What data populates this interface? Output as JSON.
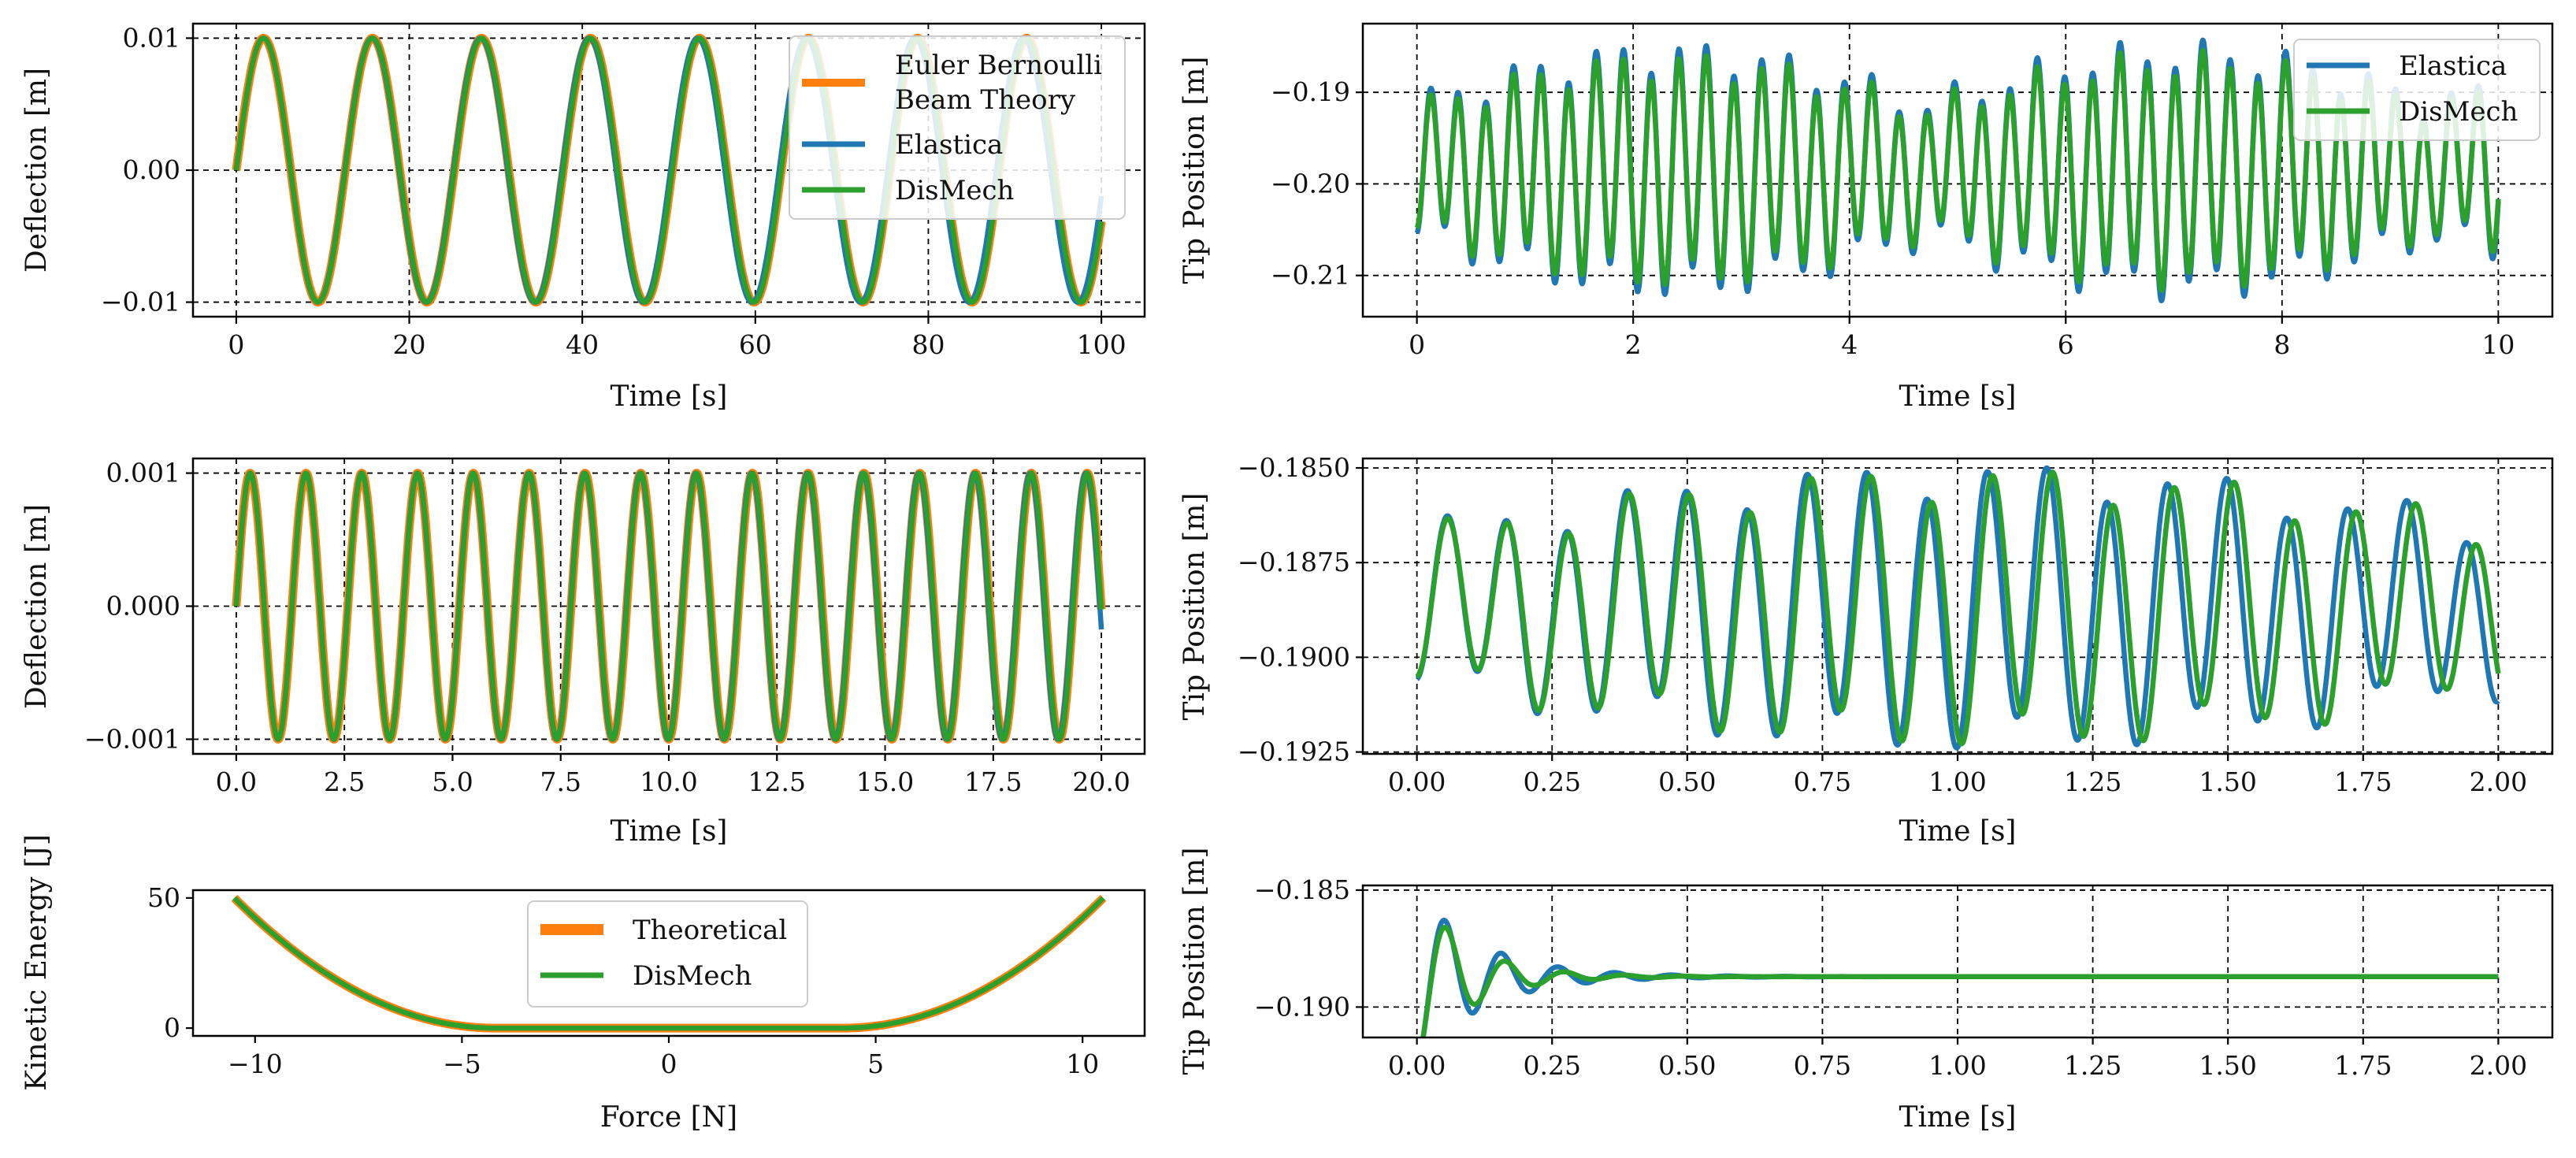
{
  "colors": {
    "theory": "#ff7f0e",
    "elastica": "#1f77b4",
    "dismech": "#2ca02c",
    "grid": "#000000",
    "frame": "#000000"
  },
  "chart_data": [
    {
      "id": "a",
      "type": "line",
      "xlabel": "Time [s]",
      "ylabel": "Deflection [m]",
      "xlim": [
        -5,
        105
      ],
      "ylim": [
        -0.0111,
        0.0111
      ],
      "xticks": [
        0,
        20,
        40,
        60,
        80,
        100
      ],
      "xticklabels": [
        "0",
        "20",
        "40",
        "60",
        "80",
        "100"
      ],
      "yticks": [
        -0.01,
        0,
        0.01
      ],
      "yticklabels": [
        "−0.01",
        "0.00",
        "0.01"
      ],
      "grid": true,
      "legend_position": "top-right",
      "series": [
        {
          "name": "Euler Bernoulli Beam Theory",
          "color_key": "theory",
          "model": "sine",
          "amp": 0.01,
          "period": 12.6,
          "x": [
            0,
            100
          ]
        },
        {
          "name": "Elastica",
          "color_key": "elastica",
          "model": "sine",
          "amp": 0.01,
          "period": 12.55,
          "x": [
            0,
            100
          ]
        },
        {
          "name": "DisMech",
          "color_key": "dismech",
          "model": "sine",
          "amp": 0.01,
          "period": 12.6,
          "x": [
            0,
            100
          ]
        }
      ]
    },
    {
      "id": "b",
      "type": "line",
      "xlabel": "Time [s]",
      "ylabel": "Tip Position [m]",
      "xlim": [
        -0.5,
        10.5
      ],
      "ylim": [
        -0.2145,
        -0.1825
      ],
      "xticks": [
        0,
        2,
        4,
        6,
        8,
        10
      ],
      "xticklabels": [
        "0",
        "2",
        "4",
        "6",
        "8",
        "10"
      ],
      "yticks": [
        -0.21,
        -0.2,
        -0.19
      ],
      "yticklabels": [
        "−0.21",
        "−0.20",
        "−0.19"
      ],
      "grid": true,
      "legend_position": "top-right",
      "series": [
        {
          "name": "Elastica",
          "color_key": "elastica",
          "model": "beat",
          "mean": -0.1985,
          "amp": 0.0125,
          "period": 0.255,
          "x": [
            0,
            10
          ]
        },
        {
          "name": "DisMech",
          "color_key": "dismech",
          "model": "beat",
          "mean": -0.1985,
          "amp": 0.0115,
          "period": 0.255,
          "x": [
            0,
            10
          ]
        }
      ]
    },
    {
      "id": "c",
      "type": "line",
      "xlabel": "Time [s]",
      "ylabel": "Deflection [m]",
      "xlim": [
        -1,
        21
      ],
      "ylim": [
        -0.00111,
        0.00111
      ],
      "xticks": [
        0,
        2.5,
        5,
        7.5,
        10,
        12.5,
        15,
        17.5,
        20
      ],
      "xticklabels": [
        "0.0",
        "2.5",
        "5.0",
        "7.5",
        "10.0",
        "12.5",
        "15.0",
        "17.5",
        "20.0"
      ],
      "yticks": [
        -0.001,
        0,
        0.001
      ],
      "yticklabels": [
        "−0.001",
        "0.000",
        "0.001"
      ],
      "grid": true,
      "series": [
        {
          "name": "Euler Bernoulli Beam Theory",
          "color_key": "theory",
          "model": "sine",
          "amp": 0.001,
          "period": 1.29,
          "x": [
            0,
            20
          ]
        },
        {
          "name": "Elastica",
          "color_key": "elastica",
          "model": "sine",
          "amp": 0.001,
          "period": 1.288,
          "x": [
            0,
            20
          ]
        },
        {
          "name": "DisMech",
          "color_key": "dismech",
          "model": "sine",
          "amp": 0.001,
          "period": 1.29,
          "x": [
            0,
            20
          ]
        }
      ]
    },
    {
      "id": "d",
      "type": "line",
      "xlabel": "Time [s]",
      "ylabel": "Tip Position [m]",
      "xlim": [
        -0.1,
        2.1
      ],
      "ylim": [
        -0.19255,
        -0.18475
      ],
      "xticks": [
        0,
        0.25,
        0.5,
        0.75,
        1,
        1.25,
        1.5,
        1.75,
        2
      ],
      "xticklabels": [
        "0.00",
        "0.25",
        "0.50",
        "0.75",
        "1.00",
        "1.25",
        "1.50",
        "1.75",
        "2.00"
      ],
      "yticks": [
        -0.1925,
        -0.19,
        -0.1875,
        -0.185
      ],
      "yticklabels": [
        "−0.1925",
        "−0.1900",
        "−0.1875",
        "−0.1850"
      ],
      "grid": true,
      "series": [
        {
          "name": "Elastica",
          "color_key": "elastica",
          "model": "beat",
          "mean": -0.1887,
          "amp": 0.0034,
          "period": 0.111,
          "x": [
            0,
            2
          ]
        },
        {
          "name": "DisMech",
          "color_key": "dismech",
          "model": "beat",
          "mean": -0.1887,
          "amp": 0.0033,
          "period": 0.112,
          "x": [
            0,
            2
          ]
        }
      ]
    },
    {
      "id": "e",
      "type": "line",
      "xlabel": "Force [N]",
      "ylabel": "Kinetic Energy [J]",
      "xlim": [
        -11.5,
        11.5
      ],
      "ylim": [
        -3,
        53
      ],
      "xticks": [
        -10,
        -5,
        0,
        5,
        10
      ],
      "xticklabels": [
        "−10",
        "−5",
        "0",
        "5",
        "10"
      ],
      "yticks": [
        0,
        50
      ],
      "yticklabels": [
        "0",
        "50"
      ],
      "grid": false,
      "legend_position": "upper center",
      "series": [
        {
          "name": "Theoretical",
          "color_key": "theory",
          "model": "deadzone",
          "x": [
            -10.5,
            10.5
          ],
          "threshold": 4.2,
          "ymax": 50
        },
        {
          "name": "DisMech",
          "color_key": "dismech",
          "model": "deadzone",
          "x": [
            -10.5,
            10.5
          ],
          "threshold": 4.2,
          "ymax": 50
        }
      ]
    },
    {
      "id": "f",
      "type": "line",
      "xlabel": "Time [s]",
      "ylabel": "Tip Position [m]",
      "xlim": [
        -0.1,
        2.1
      ],
      "ylim": [
        -0.1913,
        -0.1848
      ],
      "xticks": [
        0,
        0.25,
        0.5,
        0.75,
        1,
        1.25,
        1.5,
        1.75,
        2
      ],
      "xticklabels": [
        "0.00",
        "0.25",
        "0.50",
        "0.75",
        "1.00",
        "1.25",
        "1.50",
        "1.75",
        "2.00"
      ],
      "yticks": [
        -0.19,
        -0.185
      ],
      "yticklabels": [
        "−0.190",
        "−0.185"
      ],
      "grid": true,
      "series": [
        {
          "name": "Elastica",
          "color_key": "elastica",
          "model": "damped",
          "mean": -0.1887,
          "amp": 0.0037,
          "period": 0.105,
          "tau": 0.12,
          "x": [
            0,
            2
          ]
        },
        {
          "name": "DisMech",
          "color_key": "dismech",
          "model": "damped",
          "mean": -0.1887,
          "amp": 0.0037,
          "period": 0.11,
          "tau": 0.095,
          "x": [
            0,
            2
          ]
        }
      ]
    }
  ]
}
